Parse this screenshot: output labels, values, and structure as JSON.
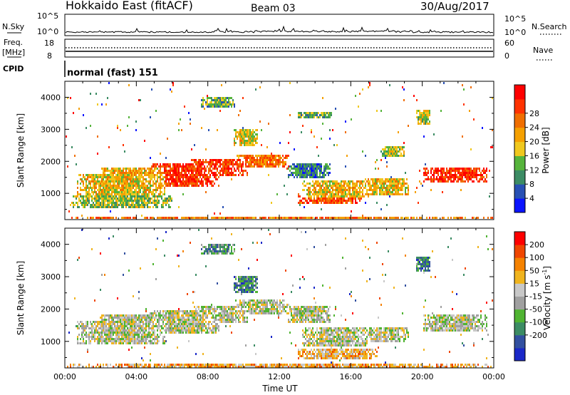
{
  "header": {
    "title": "Hokkaido East (fitACF)",
    "beam": "Beam 03",
    "date": "30/Aug/2017"
  },
  "strip_nsky": {
    "label": "N.Sky",
    "right_label": "N.Search",
    "left_top": "10^5",
    "left_bottom": "10^0",
    "right_top": "10^5",
    "right_bottom": "10^0"
  },
  "strip_freq": {
    "label_line1": "Freq.",
    "label_line2": "[MHz]",
    "left_top": "18",
    "left_bottom": "8",
    "right_top": "60",
    "right_bottom": "0",
    "right_label": "Nave"
  },
  "cpid": {
    "label": "CPID",
    "value": "normal (fast) 151"
  },
  "chart_data": [
    {
      "type": "heatmap",
      "xlabel": "",
      "ylabel": "Slant Range [km]",
      "yticks": [
        1000,
        2000,
        3000,
        4000
      ],
      "ylim": [
        180,
        4500
      ],
      "xlim_hours": [
        0,
        24
      ],
      "colorbar": {
        "label": "Power [dB]",
        "ticks": [
          "4",
          "8",
          "12",
          "16",
          "20",
          "24",
          "28"
        ],
        "colors": [
          "#0a14ff",
          "#2850b4",
          "#3c8c64",
          "#56b43c",
          "#f0c81e",
          "#f5a000",
          "#f06e00",
          "#ff3200",
          "#ff0000"
        ]
      },
      "regions": [
        {
          "t0": 0.6,
          "t1": 5.6,
          "r0": 950,
          "r1": 1650,
          "c": 0.55
        },
        {
          "t0": 2.0,
          "t1": 5.5,
          "r0": 1400,
          "r1": 1850,
          "c": 0.6
        },
        {
          "t0": 4.6,
          "t1": 8.6,
          "r0": 1250,
          "r1": 2000,
          "c": 0.85
        },
        {
          "t0": 7.0,
          "t1": 10.2,
          "r0": 1600,
          "r1": 2100,
          "c": 0.85
        },
        {
          "t0": 9.5,
          "t1": 12.5,
          "r0": 1850,
          "r1": 2250,
          "c": 0.7
        },
        {
          "t0": 12.4,
          "t1": 14.8,
          "r0": 1500,
          "r1": 2000,
          "c": 0.25
        },
        {
          "t0": 13.2,
          "t1": 17.0,
          "r0": 900,
          "r1": 1450,
          "c": 0.55
        },
        {
          "t0": 16.6,
          "t1": 19.2,
          "r0": 1000,
          "r1": 1500,
          "c": 0.55
        },
        {
          "t0": 17.6,
          "t1": 19.0,
          "r0": 2200,
          "r1": 2500,
          "c": 0.45
        },
        {
          "t0": 20.0,
          "t1": 23.6,
          "r0": 1350,
          "r1": 1850,
          "c": 0.85
        },
        {
          "t0": 7.6,
          "t1": 9.5,
          "r0": 3700,
          "r1": 4050,
          "c": 0.35
        },
        {
          "t0": 9.4,
          "t1": 10.8,
          "r0": 2500,
          "r1": 3050,
          "c": 0.5
        },
        {
          "t0": 13.0,
          "t1": 15.0,
          "r0": 3350,
          "r1": 3600,
          "c": 0.35
        },
        {
          "t0": 19.6,
          "t1": 20.4,
          "r0": 3200,
          "r1": 3650,
          "c": 0.45
        },
        {
          "t0": 13.0,
          "t1": 16.6,
          "r0": 700,
          "r1": 1050,
          "c": 0.8
        },
        {
          "t0": 0.2,
          "t1": 6.0,
          "r0": 600,
          "r1": 1000,
          "c": 0.4
        },
        {
          "t0": 0.1,
          "t1": 23.9,
          "r0": 200,
          "r1": 320,
          "c": 0.7
        }
      ]
    },
    {
      "type": "heatmap",
      "xlabel": "Time UT",
      "ylabel": "Slant Range [km]",
      "xticks": [
        "00:00",
        "04:00",
        "08:00",
        "12:00",
        "16:00",
        "20:00",
        "00:00"
      ],
      "yticks": [
        1000,
        2000,
        3000,
        4000
      ],
      "ylim": [
        180,
        4500
      ],
      "xlim_hours": [
        0,
        24
      ],
      "colorbar": {
        "label": "Velocity [m s^-1]",
        "ticks": [
          "200",
          "100",
          "50",
          "15",
          "-15",
          "-50",
          "-100",
          "-200"
        ],
        "colors": [
          "#1a28c8",
          "#3250a0",
          "#3c8c64",
          "#50b432",
          "#a0a0a0",
          "#c8c8c8",
          "#f0b41e",
          "#f58200",
          "#f04600",
          "#ff0000"
        ]
      },
      "regions": [
        {
          "t0": 0.6,
          "t1": 5.6,
          "r0": 950,
          "r1": 1650,
          "c": 0.5
        },
        {
          "t0": 2.0,
          "t1": 5.5,
          "r0": 1400,
          "r1": 1850,
          "c": 0.5
        },
        {
          "t0": 4.6,
          "t1": 8.6,
          "r0": 1250,
          "r1": 2000,
          "c": 0.5
        },
        {
          "t0": 7.0,
          "t1": 10.2,
          "r0": 1600,
          "r1": 2100,
          "c": 0.5
        },
        {
          "t0": 9.5,
          "t1": 12.5,
          "r0": 1850,
          "r1": 2300,
          "c": 0.5
        },
        {
          "t0": 12.4,
          "t1": 14.8,
          "r0": 1600,
          "r1": 2100,
          "c": 0.5
        },
        {
          "t0": 13.2,
          "t1": 17.0,
          "r0": 900,
          "r1": 1450,
          "c": 0.5
        },
        {
          "t0": 16.6,
          "t1": 19.2,
          "r0": 1000,
          "r1": 1500,
          "c": 0.5
        },
        {
          "t0": 20.0,
          "t1": 23.6,
          "r0": 1350,
          "r1": 1850,
          "c": 0.5
        },
        {
          "t0": 7.6,
          "t1": 9.5,
          "r0": 3700,
          "r1": 4050,
          "c": 0.3
        },
        {
          "t0": 9.4,
          "t1": 10.8,
          "r0": 2500,
          "r1": 3050,
          "c": 0.25
        },
        {
          "t0": 19.6,
          "t1": 20.4,
          "r0": 3200,
          "r1": 3650,
          "c": 0.25
        },
        {
          "t0": 13.0,
          "t1": 17.5,
          "r0": 450,
          "r1": 800,
          "c": 0.65
        },
        {
          "t0": 0.1,
          "t1": 23.9,
          "r0": 200,
          "r1": 320,
          "c": 0.68
        }
      ]
    }
  ]
}
